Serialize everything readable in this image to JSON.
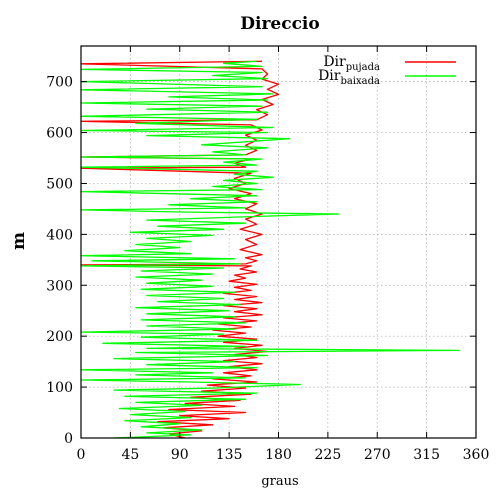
{
  "chart_data": {
    "type": "line",
    "title": "Direccio",
    "xlabel": "graus",
    "ylabel": "m",
    "xlim": [
      0,
      360
    ],
    "ylim": [
      0,
      770
    ],
    "xticks": [
      0,
      45,
      90,
      135,
      180,
      225,
      270,
      315,
      360
    ],
    "yticks": [
      0,
      100,
      200,
      300,
      400,
      500,
      600,
      700
    ],
    "grid": true,
    "legend_position": "top-right",
    "colors": {
      "pujada": "#ff0000",
      "baixada": "#00ff00"
    },
    "series": [
      {
        "name": "Dir",
        "name_sub": "pujada",
        "color": "#ff0000",
        "points": [
          [
            95,
            0
          ],
          [
            80,
            8
          ],
          [
            110,
            14
          ],
          [
            75,
            20
          ],
          [
            120,
            26
          ],
          [
            70,
            32
          ],
          [
            135,
            38
          ],
          [
            90,
            44
          ],
          [
            150,
            50
          ],
          [
            80,
            56
          ],
          [
            140,
            62
          ],
          [
            95,
            68
          ],
          [
            145,
            74
          ],
          [
            100,
            80
          ],
          [
            155,
            86
          ],
          [
            110,
            92
          ],
          [
            150,
            98
          ],
          [
            115,
            104
          ],
          [
            160,
            110
          ],
          [
            120,
            116
          ],
          [
            155,
            122
          ],
          [
            130,
            128
          ],
          [
            160,
            134
          ],
          [
            135,
            140
          ],
          [
            165,
            146
          ],
          [
            130,
            152
          ],
          [
            160,
            158
          ],
          [
            140,
            164
          ],
          [
            170,
            170
          ],
          [
            140,
            176
          ],
          [
            165,
            182
          ],
          [
            130,
            188
          ],
          [
            160,
            194
          ],
          [
            125,
            200
          ],
          [
            150,
            206
          ],
          [
            120,
            212
          ],
          [
            155,
            218
          ],
          [
            125,
            224
          ],
          [
            160,
            230
          ],
          [
            130,
            236
          ],
          [
            165,
            242
          ],
          [
            140,
            248
          ],
          [
            160,
            254
          ],
          [
            130,
            260
          ],
          [
            165,
            266
          ],
          [
            140,
            272
          ],
          [
            160,
            278
          ],
          [
            130,
            284
          ],
          [
            155,
            290
          ],
          [
            140,
            296
          ],
          [
            160,
            302
          ],
          [
            135,
            308
          ],
          [
            150,
            314
          ],
          [
            140,
            320
          ],
          [
            160,
            326
          ],
          [
            145,
            332
          ],
          [
            155,
            338
          ],
          [
            0,
            340
          ],
          [
            150,
            342
          ],
          [
            160,
            348
          ],
          [
            150,
            354
          ],
          [
            165,
            360
          ],
          [
            145,
            370
          ],
          [
            160,
            380
          ],
          [
            150,
            390
          ],
          [
            165,
            400
          ],
          [
            145,
            410
          ],
          [
            160,
            420
          ],
          [
            150,
            430
          ],
          [
            165,
            440
          ],
          [
            150,
            450
          ],
          [
            160,
            460
          ],
          [
            140,
            470
          ],
          [
            155,
            480
          ],
          [
            135,
            490
          ],
          [
            150,
            500
          ],
          [
            140,
            510
          ],
          [
            155,
            520
          ],
          [
            0,
            530
          ],
          [
            150,
            532
          ],
          [
            140,
            540
          ],
          [
            155,
            548
          ],
          [
            0,
            552
          ],
          [
            150,
            556
          ],
          [
            160,
            565
          ],
          [
            150,
            575
          ],
          [
            160,
            585
          ],
          [
            150,
            595
          ],
          [
            165,
            605
          ],
          [
            155,
            615
          ],
          [
            0,
            622
          ],
          [
            160,
            625
          ],
          [
            170,
            635
          ],
          [
            160,
            645
          ],
          [
            175,
            655
          ],
          [
            165,
            665
          ],
          [
            180,
            675
          ],
          [
            170,
            685
          ],
          [
            180,
            695
          ],
          [
            165,
            705
          ],
          [
            170,
            715
          ],
          [
            165,
            725
          ],
          [
            0,
            735
          ],
          [
            165,
            740
          ]
        ]
      },
      {
        "name": "Dir",
        "name_sub": "baixada",
        "color": "#00ff00",
        "points": [
          [
            30,
            0
          ],
          [
            100,
            6
          ],
          [
            60,
            10
          ],
          [
            110,
            16
          ],
          [
            55,
            22
          ],
          [
            90,
            28
          ],
          [
            40,
            34
          ],
          [
            100,
            40
          ],
          [
            45,
            46
          ],
          [
            95,
            52
          ],
          [
            35,
            58
          ],
          [
            110,
            64
          ],
          [
            50,
            70
          ],
          [
            150,
            76
          ],
          [
            40,
            82
          ],
          [
            160,
            88
          ],
          [
            30,
            94
          ],
          [
            120,
            98
          ],
          [
            200,
            105
          ],
          [
            100,
            110
          ],
          [
            0,
            114
          ],
          [
            150,
            118
          ],
          [
            50,
            124
          ],
          [
            120,
            128
          ],
          [
            0,
            134
          ],
          [
            160,
            138
          ],
          [
            60,
            144
          ],
          [
            140,
            150
          ],
          [
            30,
            156
          ],
          [
            170,
            162
          ],
          [
            50,
            168
          ],
          [
            345,
            172
          ],
          [
            60,
            176
          ],
          [
            150,
            180
          ],
          [
            20,
            186
          ],
          [
            160,
            192
          ],
          [
            55,
            198
          ],
          [
            130,
            204
          ],
          [
            0,
            208
          ],
          [
            140,
            214
          ],
          [
            60,
            220
          ],
          [
            150,
            226
          ],
          [
            55,
            232
          ],
          [
            140,
            238
          ],
          [
            60,
            244
          ],
          [
            135,
            250
          ],
          [
            50,
            256
          ],
          [
            145,
            262
          ],
          [
            70,
            268
          ],
          [
            130,
            274
          ],
          [
            60,
            280
          ],
          [
            140,
            286
          ],
          [
            55,
            292
          ],
          [
            120,
            298
          ],
          [
            60,
            304
          ],
          [
            110,
            310
          ],
          [
            50,
            316
          ],
          [
            120,
            322
          ],
          [
            55,
            328
          ],
          [
            130,
            334
          ],
          [
            0,
            338
          ],
          [
            145,
            342
          ],
          [
            10,
            348
          ],
          [
            140,
            352
          ],
          [
            0,
            358
          ],
          [
            100,
            362
          ],
          [
            40,
            368
          ],
          [
            90,
            374
          ],
          [
            50,
            380
          ],
          [
            100,
            386
          ],
          [
            60,
            392
          ],
          [
            120,
            398
          ],
          [
            45,
            404
          ],
          [
            130,
            410
          ],
          [
            70,
            416
          ],
          [
            150,
            422
          ],
          [
            60,
            428
          ],
          [
            140,
            434
          ],
          [
            235,
            440
          ],
          [
            90,
            444
          ],
          [
            0,
            448
          ],
          [
            150,
            452
          ],
          [
            80,
            458
          ],
          [
            160,
            464
          ],
          [
            100,
            470
          ],
          [
            160,
            476
          ],
          [
            0,
            484
          ],
          [
            165,
            488
          ],
          [
            120,
            494
          ],
          [
            160,
            500
          ],
          [
            130,
            506
          ],
          [
            175,
            512
          ],
          [
            140,
            518
          ],
          [
            160,
            524
          ],
          [
            0,
            532
          ],
          [
            160,
            536
          ],
          [
            130,
            542
          ],
          [
            165,
            548
          ],
          [
            0,
            552
          ],
          [
            150,
            556
          ],
          [
            120,
            562
          ],
          [
            170,
            570
          ],
          [
            110,
            576
          ],
          [
            190,
            588
          ],
          [
            60,
            594
          ],
          [
            170,
            600
          ],
          [
            0,
            604
          ],
          [
            175,
            610
          ],
          [
            50,
            618
          ],
          [
            160,
            626
          ],
          [
            0,
            632
          ],
          [
            170,
            640
          ],
          [
            60,
            646
          ],
          [
            165,
            652
          ],
          [
            0,
            658
          ],
          [
            170,
            664
          ],
          [
            80,
            670
          ],
          [
            175,
            676
          ],
          [
            0,
            684
          ],
          [
            165,
            690
          ],
          [
            0,
            700
          ],
          [
            170,
            706
          ],
          [
            120,
            712
          ],
          [
            165,
            718
          ],
          [
            0,
            724
          ],
          [
            165,
            730
          ],
          [
            130,
            736
          ],
          [
            160,
            740
          ]
        ]
      }
    ]
  }
}
